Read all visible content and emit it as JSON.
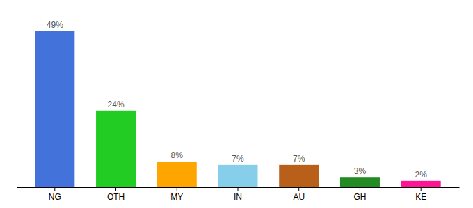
{
  "chart_data": {
    "type": "bar",
    "categories": [
      "NG",
      "OTH",
      "MY",
      "IN",
      "AU",
      "GH",
      "KE"
    ],
    "values": [
      49,
      24,
      8,
      7,
      7,
      3,
      2
    ],
    "value_labels": [
      "49%",
      "24%",
      "8%",
      "7%",
      "7%",
      "3%",
      "2%"
    ],
    "colors": [
      "#4472db",
      "#22cc22",
      "#ffa500",
      "#87ceeb",
      "#b8601a",
      "#228b22",
      "#ff1493"
    ],
    "ylim": [
      0,
      54
    ],
    "data_labels": true,
    "tick_labels": "x"
  }
}
